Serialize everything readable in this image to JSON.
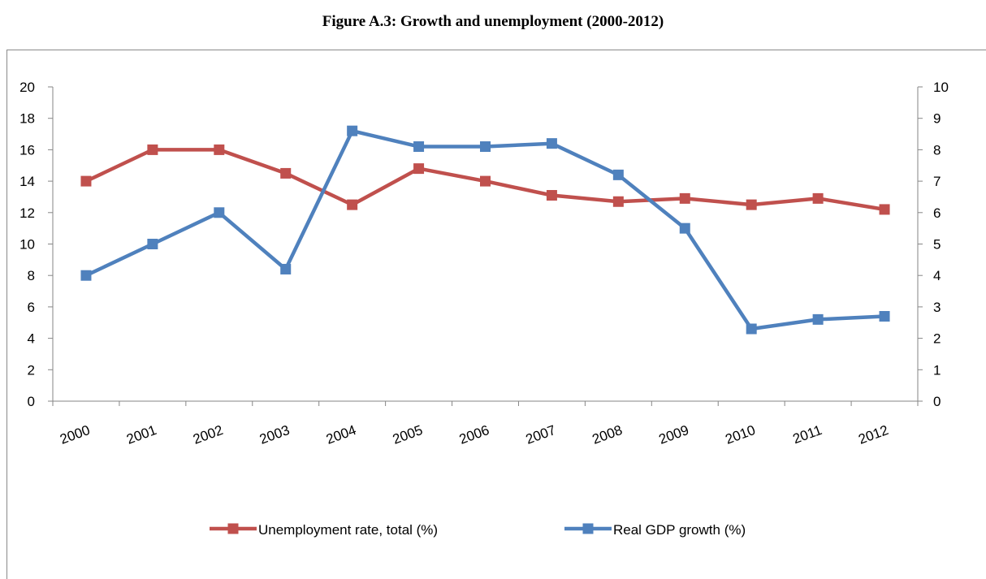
{
  "page_title": "Figure A.3: Growth and unemployment (2000-2012)",
  "colors": {
    "unemployment": "#C0504D",
    "gdp": "#4F81BD",
    "axis": "#868686"
  },
  "chart_data": {
    "type": "line",
    "title": "",
    "categories": [
      "2000",
      "2001",
      "2002",
      "2003",
      "2004",
      "2005",
      "2006",
      "2007",
      "2008",
      "2009",
      "2010",
      "2011",
      "2012"
    ],
    "series": [
      {
        "name": "Unemployment rate, total (%)",
        "axis": "left",
        "color": "#C0504D",
        "marker": "square",
        "values": [
          14,
          16,
          16,
          14.5,
          12.5,
          14.8,
          14,
          13.1,
          12.7,
          12.9,
          12.5,
          12.9,
          12.2
        ]
      },
      {
        "name": "Real GDP growth (%)",
        "axis": "right",
        "color": "#4F81BD",
        "marker": "square",
        "values": [
          4,
          5,
          6,
          4.2,
          8.6,
          8.1,
          8.1,
          8.2,
          7.2,
          5.5,
          2.3,
          2.6,
          2.7
        ]
      }
    ],
    "y_left": {
      "ylim": [
        0,
        20
      ],
      "ticks": [
        "0",
        "2",
        "4",
        "6",
        "8",
        "10",
        "12",
        "14",
        "16",
        "18",
        "20"
      ]
    },
    "y_right": {
      "ylim": [
        0,
        10
      ],
      "ticks": [
        "0",
        "1",
        "2",
        "3",
        "4",
        "5",
        "6",
        "7",
        "8",
        "9",
        "10"
      ]
    },
    "grid": false,
    "legend": "bottom"
  }
}
